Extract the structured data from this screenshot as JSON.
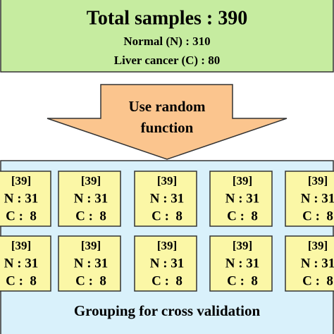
{
  "header": {
    "title": "Total samples : 390",
    "normal": "Normal (N) : 310",
    "cancer": "Liver cancer (C) : 80"
  },
  "arrow": {
    "lines": [
      "Use random",
      "function"
    ]
  },
  "groups": [
    {
      "label": "[39]",
      "n": "N : 31",
      "c": "C :  8"
    },
    {
      "label": "[39]",
      "n": "N : 31",
      "c": "C :  8"
    },
    {
      "label": "[39]",
      "n": "N : 31",
      "c": "C :  8"
    },
    {
      "label": "[39]",
      "n": "N : 31",
      "c": "C :  8"
    },
    {
      "label": "[39]",
      "n": "N : 31",
      "c": "C :  8"
    },
    {
      "label": "[39]",
      "n": "N : 31",
      "c": "C :  8"
    },
    {
      "label": "[39]",
      "n": "N : 31",
      "c": "C :  8"
    },
    {
      "label": "[39]",
      "n": "N : 31",
      "c": "C :  8"
    },
    {
      "label": "[39]",
      "n": "N : 31",
      "c": "C :  8"
    },
    {
      "label": "[39]",
      "n": "N : 31",
      "c": "C :  8"
    }
  ],
  "footer": "Grouping for cross validation"
}
